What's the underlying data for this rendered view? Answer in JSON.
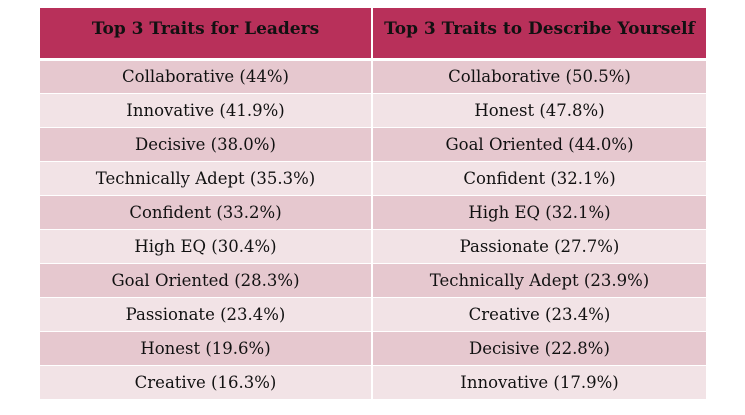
{
  "table": {
    "headers": [
      "Top 3 Traits for Leaders",
      "Top 3 Traits to Describe Yourself"
    ],
    "rows": [
      [
        "Collaborative (44%)",
        "Collaborative (50.5%)"
      ],
      [
        "Innovative (41.9%)",
        "Honest (47.8%)"
      ],
      [
        "Decisive (38.0%)",
        "Goal Oriented (44.0%)"
      ],
      [
        "Technically Adept (35.3%)",
        "Confident (32.1%)"
      ],
      [
        "Confident (33.2%)",
        "High EQ (32.1%)"
      ],
      [
        "High EQ (30.4%)",
        "Passionate (27.7%)"
      ],
      [
        "Goal Oriented (28.3%)",
        "Technically Adept (23.9%)"
      ],
      [
        "Passionate (23.4%)",
        "Creative (23.4%)"
      ],
      [
        "Honest (19.6%)",
        "Decisive (22.8%)"
      ],
      [
        "Creative (16.3%)",
        "Innovative (17.9%)"
      ]
    ]
  },
  "colors": {
    "header_bg": "#b8305a",
    "row_odd": "#e6c8cf",
    "row_even": "#f2e3e6"
  }
}
